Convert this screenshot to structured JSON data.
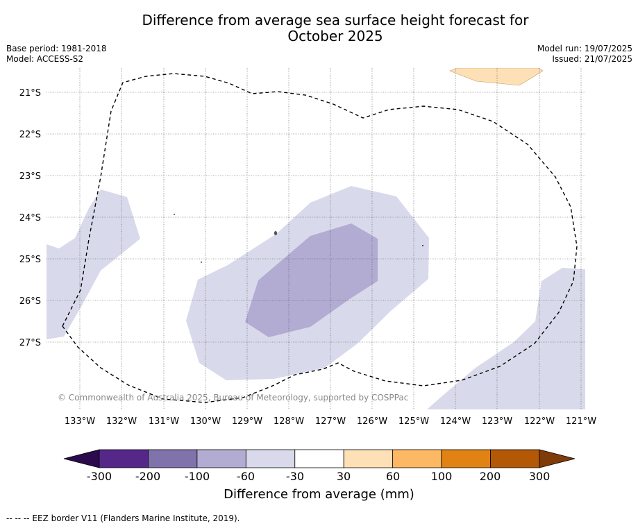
{
  "title_line1": "Difference from average sea surface height forecast for",
  "title_line2": "October 2025",
  "base_period": "Base period: 1981-2018",
  "model": "Model: ACCESS-S2",
  "model_run": "Model run: 19/07/2025",
  "issued": "Issued: 21/07/2025",
  "copyright": "© Commonwealth of Australia 2025, Bureau of Meteorology, supported by COSPPac",
  "lat_labels": [
    "21°S",
    "22°S",
    "23°S",
    "24°S",
    "25°S",
    "26°S",
    "27°S"
  ],
  "lon_labels": [
    "133°W",
    "132°W",
    "131°W",
    "130°W",
    "129°W",
    "128°W",
    "127°W",
    "126°W",
    "125°W",
    "124°W",
    "123°W",
    "122°W",
    "121°W"
  ],
  "colorbar": {
    "label": "Difference from average (mm)",
    "ticks": [
      "-300",
      "-200",
      "-100",
      "-60",
      "-30",
      "30",
      "60",
      "100",
      "200",
      "300"
    ],
    "under_color": "#2d0a4e",
    "over_color": "#7f3b08",
    "colors": [
      "#542788",
      "#8073ac",
      "#b2abd2",
      "#d8daeb",
      "#ffffff",
      "#fee0b6",
      "#fdb863",
      "#e08214",
      "#b35806"
    ]
  },
  "legend_note": "--  --  -- EEZ border V11 (Flanders Marine Institute, 2019)."
}
